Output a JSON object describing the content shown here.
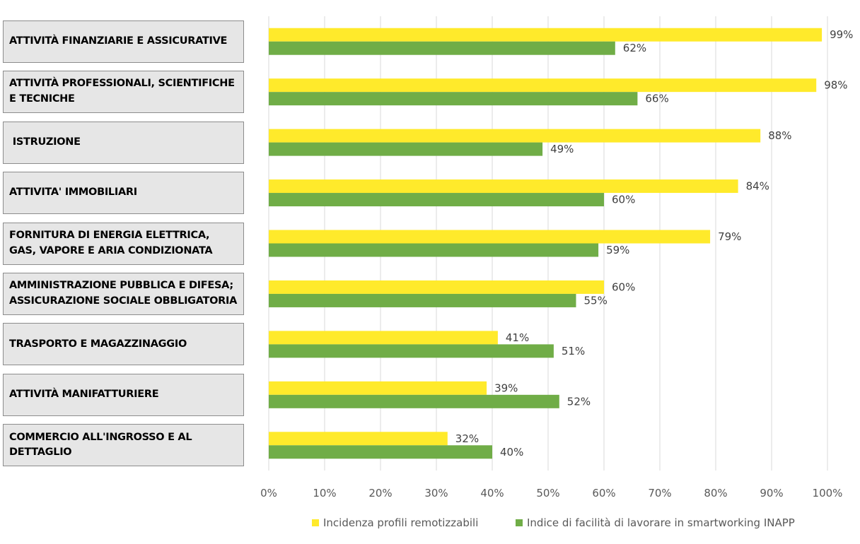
{
  "chart_data": {
    "type": "bar",
    "orientation": "horizontal",
    "categories": [
      "ATTIVITÀ FINANZIARIE E ASSICURATIVE",
      "ATTIVITÀ PROFESSIONALI, SCIENTIFICHE E TECNICHE",
      " ISTRUZIONE",
      "ATTIVITA' IMMOBILIARI",
      "FORNITURA DI ENERGIA ELETTRICA, GAS, VAPORE E ARIA CONDIZIONATA",
      "AMMINISTRAZIONE PUBBLICA E DIFESA; ASSICURAZIONE SOCIALE OBBLIGATORIA",
      "TRASPORTO E MAGAZZINAGGIO",
      "ATTIVITÀ MANIFATTURIERE",
      "COMMERCIO ALL'INGROSSO E AL DETTAGLIO"
    ],
    "series": [
      {
        "name": "Incidenza profili remotizzabili",
        "color": "#ffea2b",
        "values": [
          99,
          98,
          88,
          84,
          79,
          60,
          41,
          39,
          32
        ],
        "labels": [
          "99%",
          "98%",
          "88%",
          "84%",
          "79%",
          "60%",
          "41%",
          "39%",
          "32%"
        ]
      },
      {
        "name": "Indice di facilità di lavorare in smartworking INAPP",
        "color": "#70ad47",
        "values": [
          62,
          66,
          49,
          60,
          59,
          55,
          51,
          52,
          40
        ],
        "labels": [
          "62%",
          "66%",
          "49%",
          "60%",
          "59%",
          "55%",
          "51%",
          "52%",
          "40%"
        ]
      }
    ],
    "x_ticks": [
      "0%",
      "10%",
      "20%",
      "30%",
      "40%",
      "50%",
      "60%",
      "70%",
      "80%",
      "90%",
      "100%"
    ],
    "xlim": [
      0,
      100
    ],
    "grid": "vertical",
    "legend_position": "bottom"
  }
}
